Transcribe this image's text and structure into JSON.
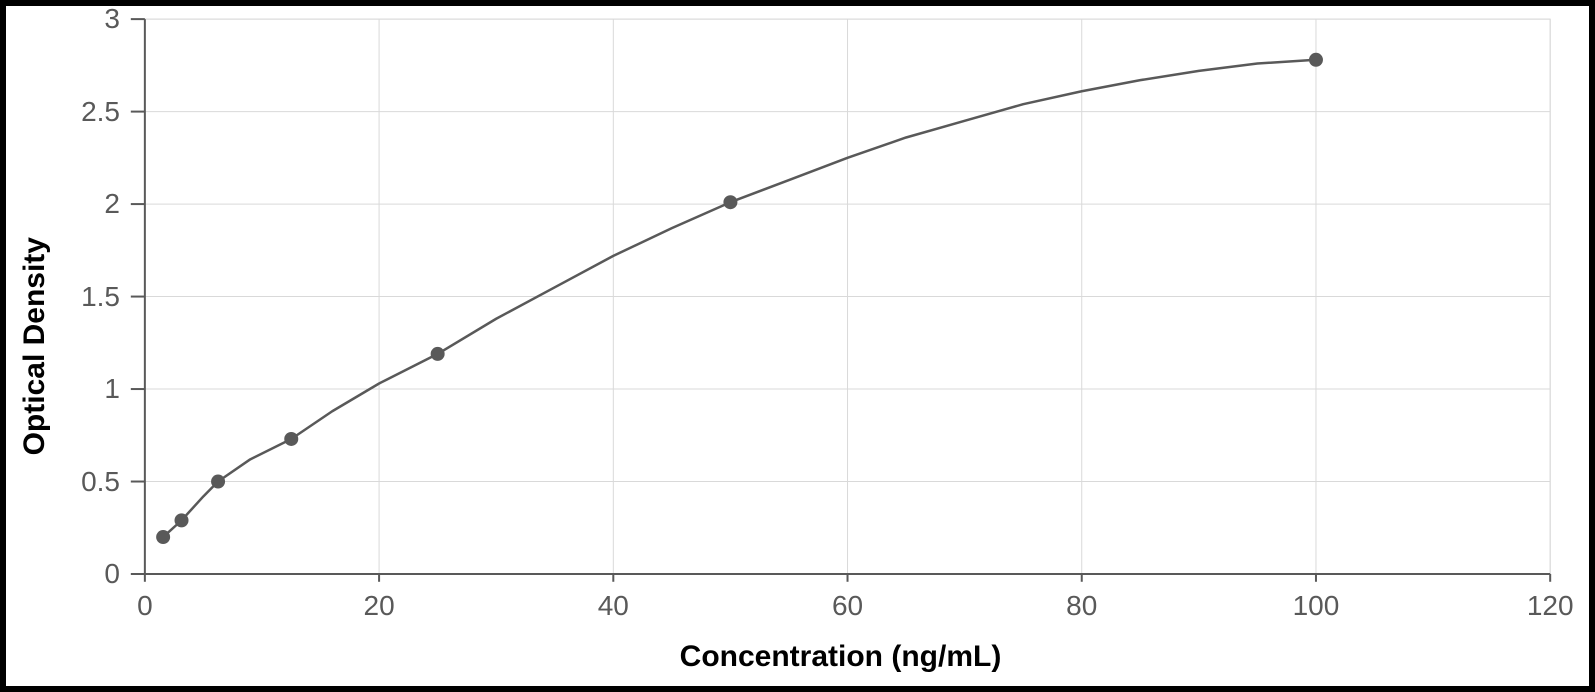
{
  "chart": {
    "type": "scatter-with-curve",
    "background_color": "#ffffff",
    "frame_border_color": "#000000",
    "frame_border_width": 6,
    "plot_border_color": "#d9d9d9",
    "plot_border_width": 1,
    "grid_color": "#d9d9d9",
    "grid_width": 1,
    "axis_line_color": "#595959",
    "axis_line_width": 2,
    "x_axis": {
      "title": "Concentration (ng/mL)",
      "title_fontsize": 30,
      "title_fontweight": 700,
      "min": 0,
      "max": 120,
      "tick_step": 20,
      "ticks": [
        0,
        20,
        40,
        60,
        80,
        100,
        120
      ],
      "tick_fontsize": 28,
      "tick_color": "#595959"
    },
    "y_axis": {
      "title": "Optical Density",
      "title_fontsize": 30,
      "title_fontweight": 700,
      "min": 0,
      "max": 3,
      "tick_step": 0.5,
      "ticks": [
        0,
        0.5,
        1,
        1.5,
        2,
        2.5,
        3
      ],
      "tick_fontsize": 28,
      "tick_color": "#595959"
    },
    "series": {
      "line_color": "#595959",
      "line_width": 2.5,
      "marker_color": "#595959",
      "marker_radius": 7,
      "points": [
        {
          "x": 1.56,
          "y": 0.2
        },
        {
          "x": 3.13,
          "y": 0.29
        },
        {
          "x": 6.25,
          "y": 0.5
        },
        {
          "x": 12.5,
          "y": 0.73
        },
        {
          "x": 25,
          "y": 1.19
        },
        {
          "x": 50,
          "y": 2.01
        },
        {
          "x": 100,
          "y": 2.78
        }
      ],
      "curve": [
        {
          "x": 1.56,
          "y": 0.2
        },
        {
          "x": 3.13,
          "y": 0.29
        },
        {
          "x": 5,
          "y": 0.42
        },
        {
          "x": 6.25,
          "y": 0.5
        },
        {
          "x": 9,
          "y": 0.62
        },
        {
          "x": 12.5,
          "y": 0.73
        },
        {
          "x": 16,
          "y": 0.88
        },
        {
          "x": 20,
          "y": 1.03
        },
        {
          "x": 25,
          "y": 1.19
        },
        {
          "x": 30,
          "y": 1.38
        },
        {
          "x": 35,
          "y": 1.55
        },
        {
          "x": 40,
          "y": 1.72
        },
        {
          "x": 45,
          "y": 1.87
        },
        {
          "x": 50,
          "y": 2.01
        },
        {
          "x": 55,
          "y": 2.13
        },
        {
          "x": 60,
          "y": 2.25
        },
        {
          "x": 65,
          "y": 2.36
        },
        {
          "x": 70,
          "y": 2.45
        },
        {
          "x": 75,
          "y": 2.54
        },
        {
          "x": 80,
          "y": 2.61
        },
        {
          "x": 85,
          "y": 2.67
        },
        {
          "x": 90,
          "y": 2.72
        },
        {
          "x": 95,
          "y": 2.76
        },
        {
          "x": 100,
          "y": 2.78
        }
      ]
    }
  }
}
